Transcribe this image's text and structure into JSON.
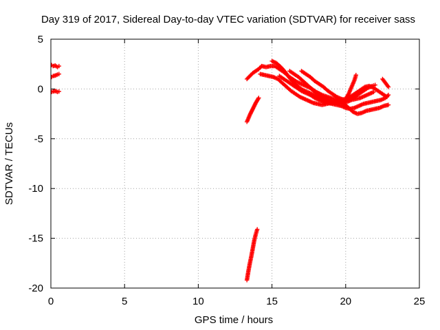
{
  "chart_data": {
    "type": "scatter",
    "title": "Day 319 of 2017, Sidereal Day-to-day VTEC variation (SDTVAR) for receiver sass",
    "xlabel": "GPS time / hours",
    "ylabel": "SDTVAR / TECUs",
    "xlim": [
      0,
      25
    ],
    "ylim": [
      -20,
      5
    ],
    "xticks": [
      0,
      5,
      10,
      15,
      20,
      25
    ],
    "yticks": [
      -20,
      -15,
      -10,
      -5,
      0,
      5
    ],
    "xtick_labels": [
      "0",
      "5",
      "10",
      "15",
      "20",
      "25"
    ],
    "ytick_labels": [
      "-20",
      "-15",
      "-10",
      "-5",
      "0",
      "5"
    ],
    "grid": true,
    "grid_style": "dotted",
    "marker": "plus",
    "color": "#ff0000",
    "series": [
      {
        "values": [
          [
            0.05,
            2.4
          ],
          [
            0.15,
            2.3
          ],
          [
            0.3,
            2.35
          ],
          [
            0.45,
            2.2
          ],
          [
            0.55,
            2.3
          ]
        ]
      },
      {
        "values": [
          [
            0.05,
            1.2
          ],
          [
            0.15,
            1.3
          ],
          [
            0.3,
            1.35
          ],
          [
            0.45,
            1.45
          ],
          [
            0.55,
            1.5
          ]
        ]
      },
      {
        "values": [
          [
            0.05,
            -0.3
          ],
          [
            0.15,
            -0.25
          ],
          [
            0.3,
            -0.2
          ],
          [
            0.45,
            -0.3
          ],
          [
            0.55,
            -0.25
          ]
        ]
      },
      {
        "values": [
          [
            13.3,
            -19.2
          ],
          [
            13.4,
            -18.3
          ],
          [
            13.5,
            -17.5
          ],
          [
            13.6,
            -16.8
          ],
          [
            13.7,
            -16.0
          ],
          [
            13.8,
            -15.2
          ],
          [
            13.9,
            -14.6
          ],
          [
            14.0,
            -14.1
          ]
        ]
      },
      {
        "values": [
          [
            13.3,
            -3.3
          ],
          [
            13.5,
            -2.6
          ],
          [
            13.7,
            -2.0
          ],
          [
            13.9,
            -1.4
          ],
          [
            14.1,
            -0.9
          ]
        ]
      },
      {
        "values": [
          [
            13.3,
            1.0
          ],
          [
            13.5,
            1.3
          ],
          [
            13.7,
            1.6
          ],
          [
            13.9,
            1.8
          ],
          [
            14.1,
            2.0
          ],
          [
            14.3,
            2.3
          ],
          [
            14.6,
            2.2
          ],
          [
            14.9,
            2.3
          ],
          [
            15.2,
            2.3
          ],
          [
            15.5,
            2.0
          ],
          [
            15.8,
            1.7
          ],
          [
            16.1,
            1.3
          ],
          [
            16.4,
            1.0
          ],
          [
            16.7,
            0.7
          ],
          [
            17.0,
            0.5
          ],
          [
            17.3,
            0.3
          ],
          [
            17.6,
            0.1
          ],
          [
            18.0,
            -0.3
          ],
          [
            18.4,
            -0.6
          ],
          [
            18.8,
            -0.8
          ],
          [
            19.2,
            -1.0
          ],
          [
            19.6,
            -1.2
          ],
          [
            20.0,
            -1.0
          ],
          [
            20.2,
            -0.5
          ],
          [
            20.4,
            0.2
          ],
          [
            20.6,
            0.9
          ],
          [
            20.7,
            1.4
          ]
        ]
      },
      {
        "values": [
          [
            14.2,
            1.5
          ],
          [
            14.5,
            1.4
          ],
          [
            14.8,
            1.3
          ],
          [
            15.1,
            1.2
          ],
          [
            15.4,
            1.0
          ],
          [
            15.7,
            0.6
          ],
          [
            16.0,
            0.2
          ],
          [
            16.3,
            -0.2
          ],
          [
            16.6,
            -0.5
          ],
          [
            16.9,
            -0.8
          ],
          [
            17.2,
            -1.0
          ],
          [
            17.5,
            -1.2
          ],
          [
            17.8,
            -1.4
          ],
          [
            18.1,
            -1.5
          ],
          [
            18.4,
            -1.6
          ],
          [
            18.7,
            -1.5
          ],
          [
            19.0,
            -1.4
          ],
          [
            19.3,
            -1.4
          ],
          [
            19.6,
            -1.3
          ],
          [
            19.9,
            -1.5
          ],
          [
            20.2,
            -1.9
          ],
          [
            20.5,
            -2.3
          ],
          [
            20.8,
            -2.5
          ],
          [
            21.1,
            -2.4
          ],
          [
            21.4,
            -2.2
          ],
          [
            21.7,
            -2.1
          ],
          [
            22.0,
            -2.0
          ],
          [
            22.3,
            -1.9
          ],
          [
            22.6,
            -1.7
          ],
          [
            22.9,
            -1.6
          ]
        ]
      },
      {
        "values": [
          [
            15.0,
            2.8
          ],
          [
            15.3,
            2.6
          ],
          [
            15.6,
            2.2
          ],
          [
            15.9,
            1.7
          ],
          [
            16.2,
            1.1
          ],
          [
            16.5,
            0.6
          ],
          [
            16.8,
            0.2
          ],
          [
            17.1,
            -0.1
          ],
          [
            17.4,
            -0.3
          ],
          [
            17.7,
            -0.5
          ],
          [
            18.0,
            -0.7
          ],
          [
            18.3,
            -0.9
          ],
          [
            18.6,
            -1.0
          ],
          [
            18.9,
            -1.1
          ],
          [
            19.2,
            -1.2
          ],
          [
            19.5,
            -1.3
          ],
          [
            19.8,
            -1.4
          ],
          [
            20.1,
            -1.3
          ],
          [
            20.4,
            -1.1
          ],
          [
            20.7,
            -1.0
          ],
          [
            21.0,
            -0.9
          ],
          [
            21.3,
            -0.7
          ],
          [
            21.6,
            -0.5
          ],
          [
            21.9,
            -0.3
          ]
        ]
      },
      {
        "values": [
          [
            15.5,
            1.3
          ],
          [
            15.8,
            1.0
          ],
          [
            16.1,
            0.7
          ],
          [
            16.4,
            0.4
          ],
          [
            16.7,
            0.1
          ],
          [
            17.0,
            -0.2
          ],
          [
            17.3,
            -0.4
          ],
          [
            17.6,
            -0.6
          ],
          [
            17.9,
            -0.9
          ],
          [
            18.2,
            -1.1
          ],
          [
            18.5,
            -1.3
          ],
          [
            18.8,
            -1.4
          ],
          [
            19.1,
            -1.5
          ],
          [
            19.4,
            -1.6
          ],
          [
            19.7,
            -1.7
          ],
          [
            20.0,
            -1.9
          ],
          [
            20.3,
            -2.0
          ],
          [
            20.6,
            -1.9
          ],
          [
            20.9,
            -1.7
          ],
          [
            21.2,
            -1.5
          ],
          [
            21.5,
            -1.4
          ],
          [
            21.8,
            -1.3
          ],
          [
            22.1,
            -1.2
          ],
          [
            22.4,
            -1.1
          ],
          [
            22.7,
            -0.9
          ],
          [
            22.9,
            -0.6
          ]
        ]
      },
      {
        "values": [
          [
            16.2,
            1.8
          ],
          [
            16.5,
            1.5
          ],
          [
            16.8,
            1.2
          ],
          [
            17.1,
            0.8
          ],
          [
            17.4,
            0.4
          ],
          [
            17.7,
            0.0
          ],
          [
            18.0,
            -0.4
          ],
          [
            18.3,
            -0.8
          ],
          [
            18.6,
            -1.1
          ],
          [
            18.9,
            -1.3
          ],
          [
            19.2,
            -1.4
          ],
          [
            19.5,
            -1.4
          ],
          [
            19.8,
            -1.3
          ],
          [
            20.1,
            -1.0
          ],
          [
            20.4,
            -0.7
          ],
          [
            20.7,
            -0.4
          ],
          [
            21.0,
            -0.1
          ],
          [
            21.3,
            0.2
          ],
          [
            21.6,
            0.3
          ],
          [
            21.9,
            0.1
          ],
          [
            22.2,
            -0.2
          ],
          [
            22.5,
            -0.5
          ],
          [
            22.8,
            -0.8
          ]
        ]
      },
      {
        "values": [
          [
            17.0,
            1.8
          ],
          [
            17.3,
            1.5
          ],
          [
            17.6,
            1.2
          ],
          [
            17.9,
            0.8
          ],
          [
            18.2,
            0.5
          ],
          [
            18.5,
            0.2
          ],
          [
            18.8,
            -0.2
          ],
          [
            19.1,
            -0.5
          ],
          [
            19.4,
            -0.8
          ],
          [
            19.7,
            -1.0
          ],
          [
            20.0,
            -1.1
          ],
          [
            20.3,
            -1.0
          ],
          [
            20.6,
            -0.8
          ],
          [
            20.9,
            -0.5
          ],
          [
            21.2,
            -0.2
          ],
          [
            21.5,
            0.1
          ],
          [
            21.8,
            0.3
          ],
          [
            22.0,
            0.4
          ]
        ]
      },
      {
        "values": [
          [
            22.5,
            1.0
          ],
          [
            22.6,
            0.8
          ],
          [
            22.7,
            0.6
          ],
          [
            22.8,
            0.4
          ],
          [
            22.9,
            0.2
          ]
        ]
      }
    ]
  }
}
